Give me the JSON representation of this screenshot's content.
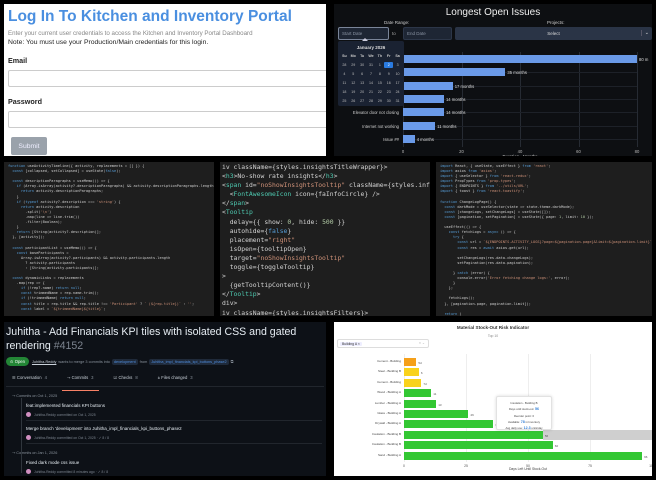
{
  "login": {
    "title": "Log In To Kitchen and Inventory Portal",
    "subtitle": "Enter your current user credentials to access the Kitchen and Inventory Portal Dashboard",
    "note": "Note: You must use your Production/Main credentials for this login.",
    "email_label": "Email",
    "email_value": "",
    "password_label": "Password",
    "password_value": "",
    "submit_label": "Submit"
  },
  "issues": {
    "title": "Longest Open Issues",
    "date_range_label": "Date Range:",
    "projects_label": "Projects:",
    "start_placeholder": "Start Date",
    "to_label": "to",
    "end_placeholder": "End Date",
    "project_select": "Select",
    "calendar": {
      "month": "January 2026",
      "weekdays": [
        "Su",
        "Mo",
        "Tu",
        "We",
        "Th",
        "Fr",
        "Sa"
      ],
      "days": [
        "28",
        "29",
        "30",
        "31",
        "1",
        "2",
        "3",
        "4",
        "5",
        "6",
        "7",
        "8",
        "9",
        "10",
        "11",
        "12",
        "13",
        "14",
        "15",
        "16",
        "17",
        "18",
        "19",
        "20",
        "21",
        "22",
        "23",
        "24",
        "25",
        "26",
        "27",
        "28",
        "29",
        "30",
        "31"
      ],
      "selected_index": 5
    }
  },
  "chart_data": [
    {
      "type": "bar",
      "orientation": "horizontal",
      "title": "Longest Open Issues",
      "xlabel": "Duration - Months",
      "ylabel": "",
      "xlim": [
        0,
        80
      ],
      "xticks": [
        0,
        20,
        40,
        60,
        80
      ],
      "grid": true,
      "categories": [
        "",
        "",
        "",
        "",
        "Elevator door not closing",
        "Internet not working",
        "Issue ##"
      ],
      "values": [
        80,
        35,
        17,
        14,
        14,
        11,
        4
      ],
      "data_labels": [
        "80 m",
        "35 months",
        "17 months",
        "14 months",
        "14 months",
        "11 months",
        "4 months"
      ],
      "bar_color": "#6a9ae8"
    },
    {
      "type": "bar",
      "orientation": "horizontal",
      "title": "Material Stock-Out Risk Indicator",
      "subtitle": "Top 10",
      "xlabel": "Days Left Until Stock-Out",
      "xlim": [
        0,
        100
      ],
      "xticks": [
        0,
        25,
        50,
        75,
        100
      ],
      "filter": "Building A",
      "categories": [
        "Cement - Building",
        "Steel - Building B",
        "Cement - Building",
        "Wood - Building A",
        "Lumber - Building A",
        "Glass - Building A",
        "Drywall - Building A",
        "Insulation - Building B",
        "Insulation - Building B",
        "Sand - Building A"
      ],
      "values": [
        5,
        6,
        7,
        11,
        13,
        26,
        36,
        56,
        60,
        96
      ],
      "data_labels": [
        "5d",
        "6",
        "7d",
        "11",
        "13",
        "26",
        "36",
        "56",
        "60",
        "96"
      ],
      "colors": [
        "#f5a01a",
        "#f9d21c",
        "#f9d21c",
        "#33c733",
        "#33c733",
        "#33c733",
        "#33c733",
        "#33c733",
        "#33c733",
        "#33c733"
      ],
      "tooltip": {
        "title": "Insulation - Building B",
        "line1_prefix": "Days until stock-out:",
        "line1_value": "56",
        "line2": "Reorder point: 0",
        "line3_prefix": "Available:",
        "line3_value": "78",
        "line3_suffix": "in Inventory",
        "line4_prefix": "Avg daily use:",
        "line4_value": "12.3",
        "line4_suffix": "units/day"
      }
    }
  ],
  "code1": {
    "lines": [
      "function useActivityTimeline({ activity, replacements = [] }) {",
      "  const [collapsed, setCollapsed] = useState(false);",
      "",
      "  const descriptionParagraphs = useMemo(() => {",
      "    if (Array.isArray(activity?.descriptionParagraphs) && activity.descriptionParagraphs.length > 0) {",
      "      return activity.descriptionParagraphs;",
      "    }",
      "    if (typeof activity?.description === 'string') {",
      "      return activity.description",
      "        .split('\\n')",
      "        .map(line => line.trim())",
      "        .filter(Boolean);",
      "    }",
      "    return [String(activity?.description)];",
      "  }, [activity]);",
      "",
      "  const participantList = useMemo(() => {",
      "    const baseParticipants =",
      "      Array.isArray(activity?.participants) && activity.participants.length",
      "        ? activity.participants",
      "        : [String(activity.participants)];",
      "",
      "  const dynamicLinks = replacements",
      "    .map(rep => {",
      "      if (!rep?.name) return null;",
      "      const trimmedName = rep.name.trim();",
      "      if (!trimmedName) return null;",
      "      const title = rep.title && rep.title !== 'Participant' ? ` (${rep.title})` : '';",
      "      const label = `${trimmedName}${title}`;"
    ]
  },
  "code2": {
    "lines": [
      "iv className={styles.insightsTitleWrapper}>",
      "<h3>No-show rate insights</h3>",
      "<span id=\"noShowInsightsTooltip\" className={styles.infoIcon}>",
      "  <FontAwesomeIcon icon={faInfoCircle} />",
      "</span>",
      "<Tooltip",
      "  delay={{ show: 0, hide: 500 }}",
      "  autohide={false}",
      "  placement=\"right\"",
      "  isOpen={tooltipOpen}",
      "  target=\"noShowInsightsTooltip\"",
      "  toggle={toggleTooltip}",
      ">",
      "  {getTooltipContent()}",
      "</Tooltip>",
      "div>",
      "iv className={styles.insightsFilters}>"
    ]
  },
  "code3": {
    "lines": [
      "import React, { useState, useEffect } from 'react';",
      "import axios from 'axios';",
      "import { useSelector } from 'react-redux';",
      "import PropTypes from 'prop-types';",
      "import { ENDPOINTS } from '../utils/URL';",
      "import { toast } from 'react-toastify';",
      "",
      "function ChangeLogPage() {",
      "  const darkMode = useSelector(state => state.theme.darkMode);",
      "  const [changeLogs, setChangeLogs] = useState([]);",
      "  const [pagination, setPagination] = useState({ page: 1, limit: 10 });",
      "",
      "  useEffect(() => {",
      "    const fetchLogs = async () => {",
      "      try {",
      "        const url = `${ENDPOINTS.ACTIVITY_LOGS}?page=${pagination.page}&limit=${pagination.limit}`;",
      "        const res = await axios.get(url);",
      "",
      "        setChangeLogs(res.data.changeLogs);",
      "        setPagination(res.data.pagination);",
      "",
      "      } catch (error) {",
      "        console.error('Error fetching change logs:', error);",
      "      }",
      "    };",
      "",
      "    fetchLogs();",
      "  }, [pagination.page, pagination.limit]);",
      "",
      "  return (",
      "    <div className={darkMode ? 'changelog dark' : 'changelog'}>"
    ]
  },
  "pr": {
    "title": "Juhitha - Add Financials KPI tiles with isolated CSS and gated rendering",
    "number": "#4152",
    "status": "Open",
    "author": "Juhitha-Reddy",
    "meta_text": "wants to merge 3 commits into",
    "base_branch": "development",
    "from_text": "from",
    "head_branch": "Juhitha_impl_financials_kpi_buttons_phase2",
    "tabs": [
      {
        "label": "Conversation",
        "count": "4"
      },
      {
        "label": "Commits",
        "count": "3"
      },
      {
        "label": "Checks",
        "count": "8"
      },
      {
        "label": "Files changed",
        "count": "3"
      }
    ],
    "groups": [
      {
        "date": "Commits on Oct 1, 2025",
        "commits": [
          {
            "message": "feat:implemented financials KPI buttons",
            "sub": "Juhitha-Reddy committed on Oct 1, 2025"
          },
          {
            "message": "Merge branch 'development' into Juhitha_impl_financials_kpi_buttons_phase2",
            "sub": "Juhitha-Reddy committed on Oct 1, 2025 · ✓ 8 / 8"
          }
        ]
      },
      {
        "date": "Commits on Jan 1, 2026",
        "commits": [
          {
            "message": "Fixed dark mode css issue",
            "sub": "Juhitha-Reddy committed 8 minutes ago · ✓ 8 / 8"
          }
        ]
      }
    ]
  }
}
